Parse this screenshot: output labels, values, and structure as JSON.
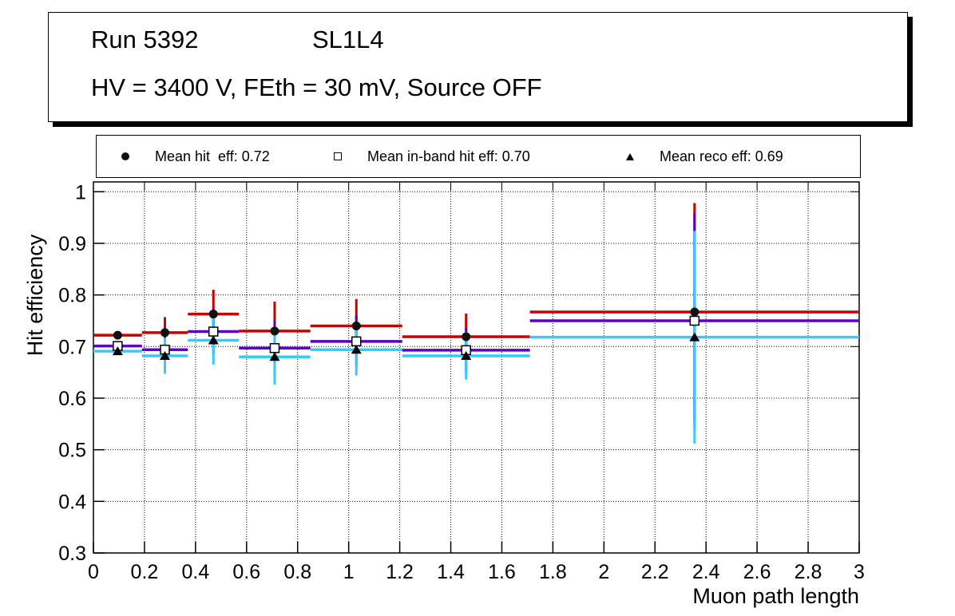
{
  "title_box": {
    "line1_left": "Run 5392",
    "line1_right": "SL1L4",
    "line2": "HV = 3400 V, FEth = 30 mV, Source OFF"
  },
  "legend": {
    "entries": [
      {
        "marker": "filled-circle",
        "label": "Mean hit  eff: 0.72"
      },
      {
        "marker": "open-square",
        "label": "Mean in-band hit eff: 0.70"
      },
      {
        "marker": "filled-triangle",
        "label": "Mean reco eff: 0.69"
      }
    ]
  },
  "chart_data": {
    "type": "scatter",
    "title": "Run 5392 SL1L4, HV = 3400 V, FEth = 30 mV, Source OFF",
    "xlabel": "Muon path length",
    "ylabel": "Hit efficiency",
    "xlim": [
      0,
      3
    ],
    "ylim": [
      0.3,
      1.019
    ],
    "grid": true,
    "legend_position": "top-strip",
    "x_ticks": [
      0,
      0.2,
      0.4,
      0.6,
      0.8,
      1,
      1.2,
      1.4,
      1.6,
      1.8,
      2,
      2.2,
      2.4,
      2.6,
      2.8,
      3
    ],
    "x_tick_labels": [
      "0",
      "0.2",
      "0.4",
      "0.6",
      "0.8",
      "1",
      "1.2",
      "1.4",
      "1.6",
      "1.8",
      "2",
      "2.2",
      "2.4",
      "2.6",
      "2.8",
      "3"
    ],
    "y_ticks": [
      0.3,
      0.4,
      0.5,
      0.6,
      0.7,
      0.8,
      0.9,
      1
    ],
    "y_tick_labels": [
      "0.3",
      "0.4",
      "0.5",
      "0.6",
      "0.7",
      "0.8",
      "0.9",
      "1"
    ],
    "bin_edges": [
      0,
      0.19,
      0.37,
      0.57,
      0.85,
      1.21,
      1.71,
      3.0
    ],
    "x": [
      0.095,
      0.28,
      0.47,
      0.71,
      1.03,
      1.46,
      2.355
    ],
    "series": [
      {
        "name": "Mean hit eff",
        "mean": 0.72,
        "color": "#c80000",
        "marker": "filled-circle",
        "values": [
          0.722,
          0.727,
          0.763,
          0.73,
          0.74,
          0.719,
          0.767
        ],
        "yerr": [
          0.004,
          0.03,
          0.047,
          0.057,
          0.052,
          0.045,
          0.211
        ]
      },
      {
        "name": "Mean in-band hit eff",
        "mean": 0.7,
        "color": "#5c00c8",
        "marker": "open-square",
        "values": [
          0.701,
          0.694,
          0.729,
          0.697,
          0.71,
          0.693,
          0.75
        ],
        "yerr": [
          0.004,
          0.028,
          0.044,
          0.054,
          0.05,
          0.043,
          0.208
        ]
      },
      {
        "name": "Mean reco eff",
        "mean": 0.69,
        "color": "#33ccff",
        "marker": "filled-triangle",
        "values": [
          0.691,
          0.682,
          0.712,
          0.68,
          0.694,
          0.682,
          0.718
        ],
        "yerr": [
          0.004,
          0.035,
          0.047,
          0.054,
          0.05,
          0.046,
          0.206
        ]
      }
    ],
    "marker_color": "#000000"
  }
}
